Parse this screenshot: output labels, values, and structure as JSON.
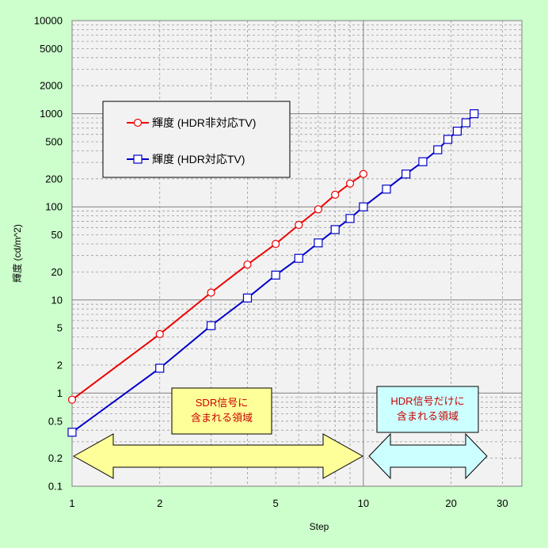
{
  "chart_data": {
    "type": "line",
    "title": "",
    "xlabel": "Step",
    "ylabel": "輝度 (cd/m^2)",
    "xscale": "log",
    "yscale": "log",
    "xlim": [
      1,
      35
    ],
    "ylim": [
      0.1,
      10000
    ],
    "grid": true,
    "legend_position": "top-left",
    "x_ticks": [
      "1",
      "2",
      "5",
      "10",
      "20",
      "30"
    ],
    "y_ticks": [
      "0.1",
      "0.2",
      "0.5",
      "1",
      "2",
      "5",
      "10",
      "20",
      "50",
      "100",
      "200",
      "500",
      "1000",
      "2000",
      "5000",
      "10000"
    ],
    "series": [
      {
        "name": "輝度 (HDR非対応TV)",
        "color": "#ee0000",
        "marker": "circle",
        "x": [
          1,
          2,
          3,
          4,
          5,
          6,
          7,
          8,
          9,
          10
        ],
        "y": [
          0.85,
          4.3,
          12,
          24,
          40,
          64,
          94,
          135,
          178,
          225
        ]
      },
      {
        "name": "輝度 (HDR対応TV)",
        "color": "#0000cc",
        "marker": "square",
        "x": [
          1,
          2,
          3,
          4,
          5,
          6,
          7,
          8,
          9,
          10,
          12,
          14,
          16,
          18,
          19.5,
          21,
          22.5,
          24
        ],
        "y": [
          0.38,
          1.85,
          5.3,
          10.5,
          18.5,
          28,
          41,
          57,
          75,
          100,
          155,
          225,
          305,
          410,
          530,
          650,
          800,
          1000
        ]
      }
    ],
    "annotations": [
      {
        "name": "sdr-region",
        "lines": [
          "SDR信号に",
          "含まれる領域"
        ]
      },
      {
        "name": "hdr-region",
        "lines": [
          "HDR信号だけに",
          "含まれる領域"
        ]
      }
    ]
  },
  "colors": {
    "page_background": "#ccffcc",
    "plot_background": "#f2f2f2",
    "sdr_note_fill": "#ffff99",
    "sdr_arrow_fill": "#ffff99",
    "hdr_note_fill": "#ccffff",
    "hdr_arrow_fill": "#ccffff"
  }
}
